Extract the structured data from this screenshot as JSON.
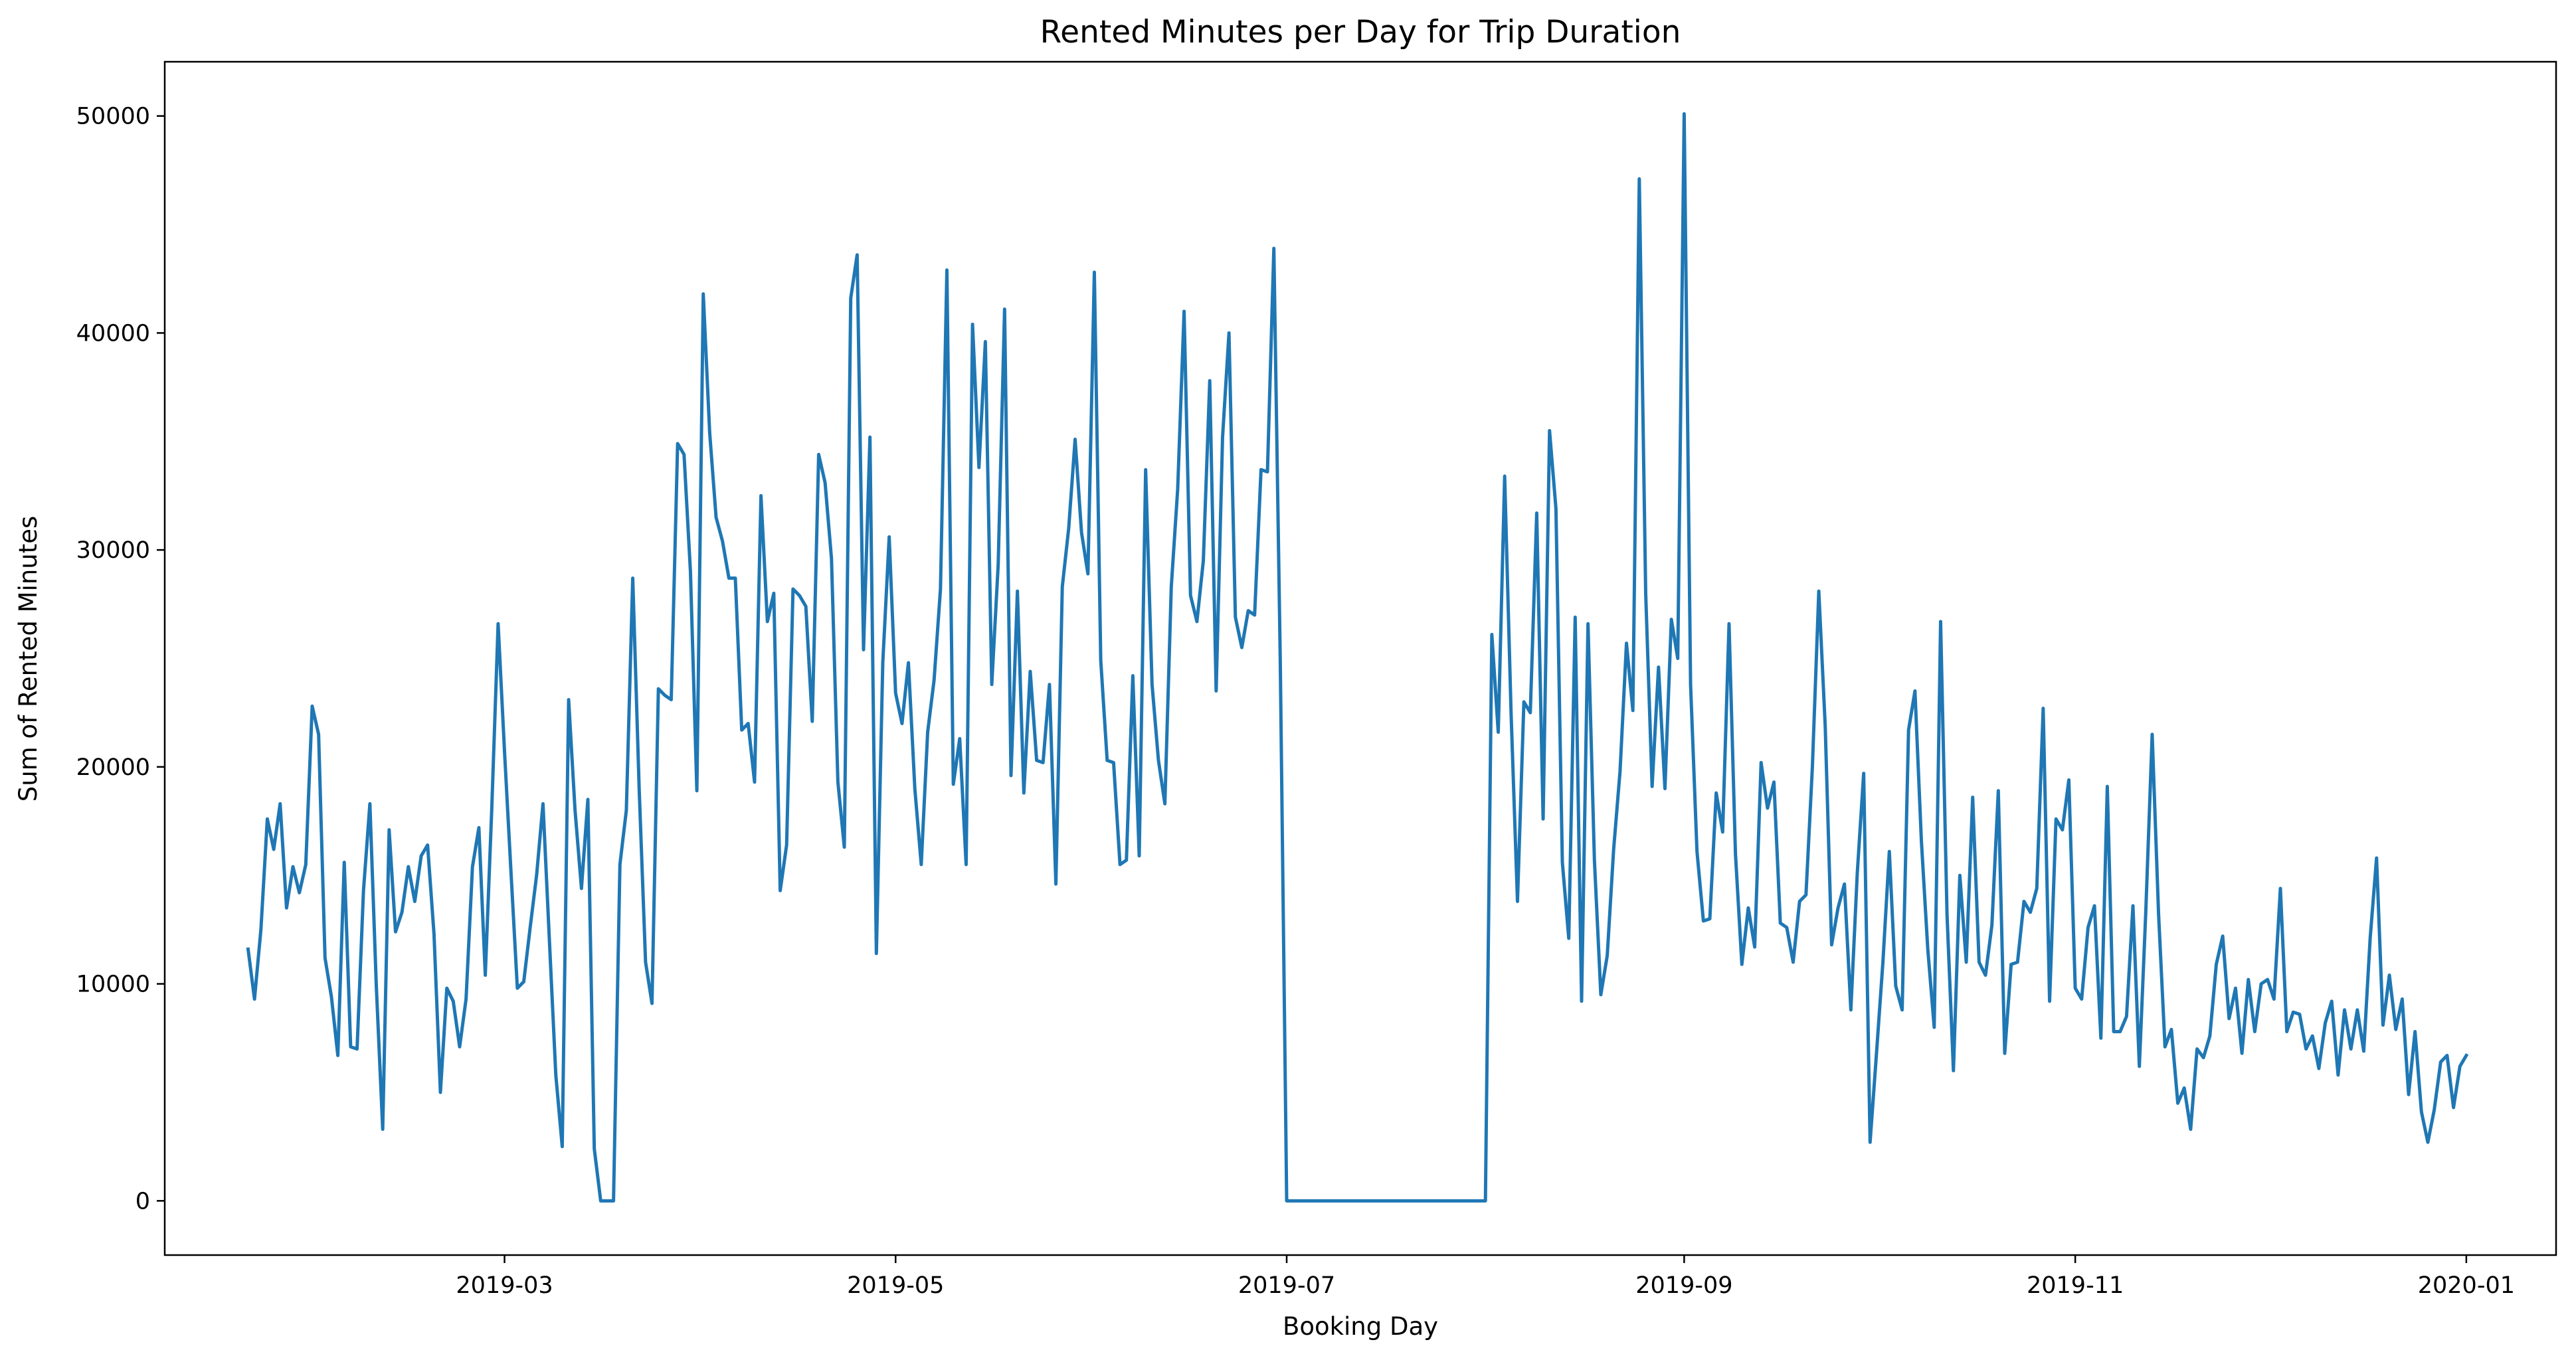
{
  "chart_data": {
    "type": "line",
    "title": "Rented Minutes per Day for Trip Duration",
    "xlabel": "Booking Day",
    "ylabel": "Sum of Rented Minutes",
    "x_range": [
      "2019-01-07",
      "2020-01-15"
    ],
    "ylim": [
      -2500,
      52500
    ],
    "x_ticks": [
      "2019-03",
      "2019-05",
      "2019-07",
      "2019-09",
      "2019-11",
      "2020-01"
    ],
    "y_ticks": [
      0,
      10000,
      20000,
      30000,
      40000,
      50000
    ],
    "y_tick_labels": [
      "0",
      "10000",
      "20000",
      "30000",
      "40000",
      "50000"
    ],
    "grid": false,
    "legend": "none",
    "line_color": "#1f77b4",
    "series": [
      {
        "start_date": "2019-01-20",
        "values": [
          11600,
          9300,
          12500,
          17600,
          16200,
          18300,
          13500,
          15400,
          14200,
          15500,
          22800,
          21500,
          11200,
          9400,
          6700,
          15600,
          7100,
          7000,
          14300,
          18300,
          9900,
          3300,
          17100,
          12400,
          13300,
          15400,
          13800,
          15900,
          16400,
          12300,
          5000,
          9800,
          9200,
          7100,
          9300,
          15400,
          17200,
          10400,
          18000,
          26600,
          20700,
          15200,
          9800,
          10100,
          12600,
          15000,
          18300,
          12000,
          5800,
          2500,
          23100,
          18000,
          14400,
          18500,
          2400,
          0,
          0,
          0,
          15500,
          18000,
          28700,
          19000,
          11000,
          9100,
          23600,
          23300,
          23100,
          34900,
          34400,
          29000,
          18900,
          41800,
          35400,
          31500,
          30400,
          28700,
          28700,
          21700,
          22000,
          19300,
          32500,
          26700,
          28000,
          14300,
          16400,
          28200,
          27900,
          27400,
          22100,
          34400,
          33100,
          29600,
          19300,
          16300,
          41600,
          43600,
          25400,
          35200,
          11400,
          24800,
          30600,
          23400,
          22000,
          24800,
          19000,
          15500,
          21600,
          24000,
          28200,
          42900,
          19200,
          21300,
          15500,
          40400,
          33800,
          39600,
          23800,
          29300,
          41100,
          19600,
          28100,
          18800,
          24400,
          20300,
          20200,
          23800,
          14600,
          28300,
          31000,
          35100,
          30800,
          28900,
          42800,
          24900,
          20300,
          20200,
          15500,
          15700,
          24200,
          15900,
          33700,
          23800,
          20300,
          18300,
          28300,
          32800,
          41000,
          27900,
          26700,
          29500,
          37800,
          23500,
          35200,
          40000,
          26900,
          25500,
          27200,
          27000,
          33700,
          33600,
          43900,
          24900,
          0,
          0,
          0,
          0,
          0,
          0,
          0,
          0,
          0,
          0,
          0,
          0,
          0,
          0,
          0,
          0,
          0,
          0,
          0,
          0,
          0,
          0,
          0,
          0,
          0,
          0,
          0,
          0,
          0,
          0,
          0,
          0,
          26100,
          21600,
          33400,
          22500,
          13800,
          23000,
          22500,
          31700,
          17600,
          35500,
          31900,
          15600,
          12100,
          26900,
          9200,
          26600,
          15700,
          9500,
          11300,
          16200,
          19800,
          25700,
          22600,
          47100,
          28000,
          19100,
          24600,
          19000,
          26800,
          25000,
          50100,
          23800,
          16100,
          12900,
          13000,
          18800,
          17000,
          26600,
          16000,
          10900,
          13500,
          11700,
          20200,
          18100,
          19300,
          12800,
          12600,
          11000,
          13800,
          14100,
          20000,
          28100,
          21900,
          11800,
          13500,
          14600,
          8800,
          15100,
          19700,
          2700,
          6800,
          11000,
          16100,
          9900,
          8800,
          21700,
          23500,
          16600,
          11600,
          8000,
          26700,
          13200,
          6000,
          15000,
          11000,
          18600,
          11000,
          10400,
          12700,
          18900,
          6800,
          10900,
          11000,
          13800,
          13300,
          14400,
          22700,
          9200,
          17600,
          17100,
          19400,
          9800,
          9300,
          12600,
          13600,
          7500,
          19100,
          7800,
          7800,
          8500,
          13600,
          6200,
          13300,
          21500,
          13200,
          7100,
          7900,
          4500,
          5200,
          3300,
          7000,
          6600,
          7600,
          10900,
          12200,
          8400,
          9800,
          6800,
          10200,
          7800,
          10000,
          10200,
          9300,
          14400,
          7800,
          8700,
          8600,
          7000,
          7600,
          6100,
          8200,
          9200,
          5800,
          8800,
          7000,
          8800,
          6900,
          12100,
          15800,
          8100,
          10400,
          7900,
          9300,
          4900,
          7800,
          4100,
          2700,
          4200,
          6400,
          6700,
          4300,
          6200,
          6700
        ]
      }
    ]
  }
}
